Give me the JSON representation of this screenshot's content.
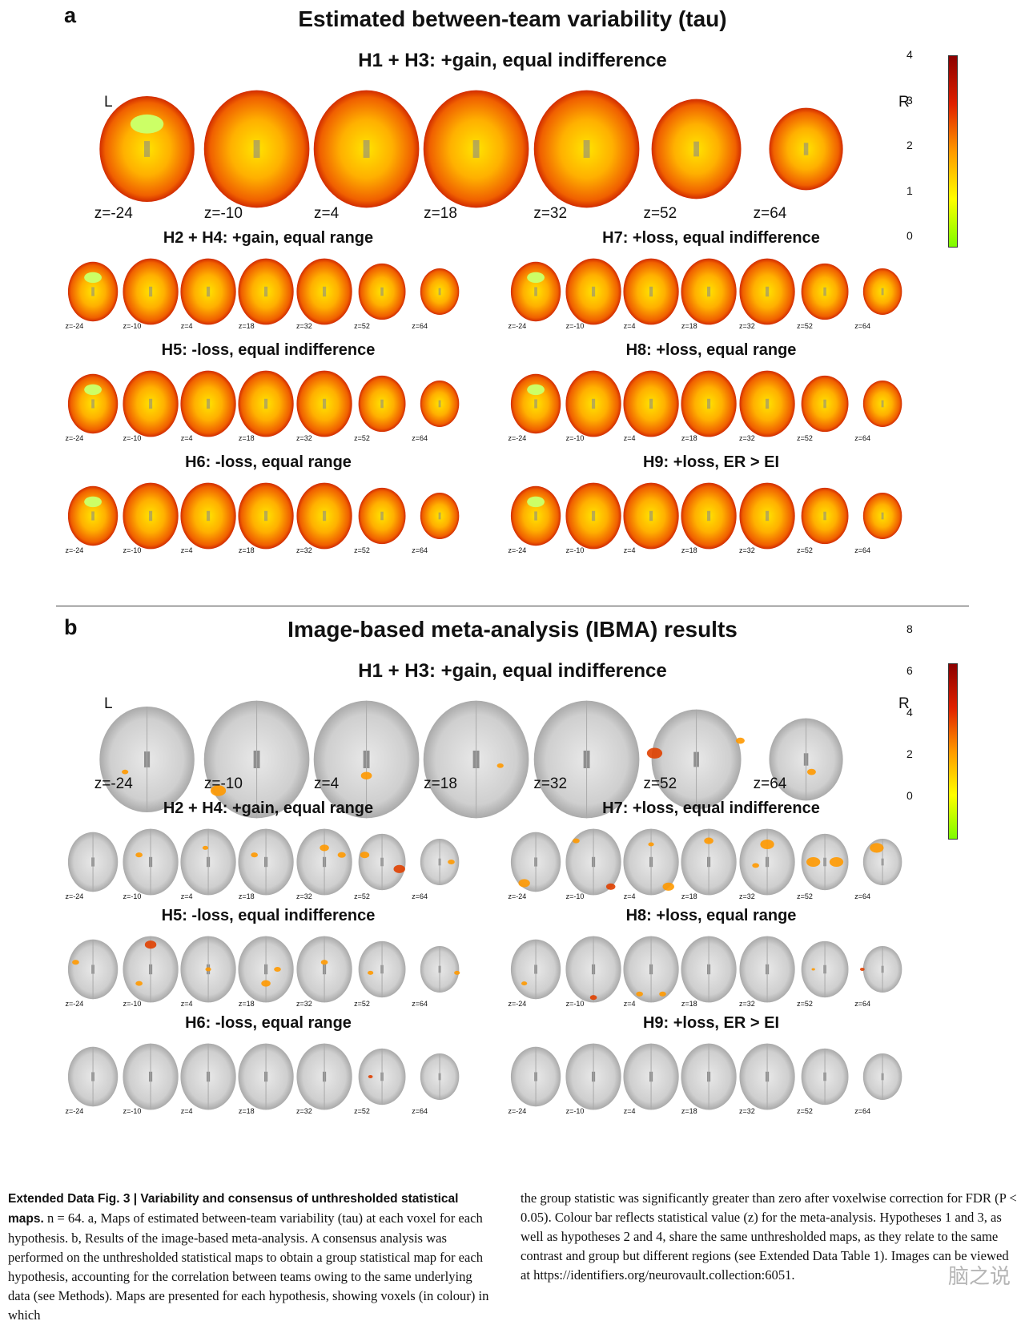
{
  "panel_a": {
    "letter": "a",
    "title": "Estimated between-team variability (tau)",
    "main_title": "H1 + H3: +gain, equal indifference",
    "left_label": "L",
    "right_label": "R",
    "colorbar_ticks": [
      "4",
      "3",
      "2",
      "1",
      "0"
    ],
    "z_labels": [
      "z=-24",
      "z=-10",
      "z=4",
      "z=18",
      "z=32",
      "z=52",
      "z=64"
    ],
    "subpanels": [
      {
        "title": "H2 + H4: +gain, equal range"
      },
      {
        "title": "H7: +loss, equal indifference"
      },
      {
        "title": "H5: -loss, equal indifference"
      },
      {
        "title": "H8: +loss, equal range"
      },
      {
        "title": "H6: -loss, equal range"
      },
      {
        "title": "H9: +loss, ER > EI"
      }
    ]
  },
  "panel_b": {
    "letter": "b",
    "title": "Image-based meta-analysis (IBMA) results",
    "main_title": "H1 + H3: +gain, equal indifference",
    "left_label": "L",
    "right_label": "R",
    "colorbar_ticks": [
      "8",
      "6",
      "4",
      "2",
      "0"
    ],
    "z_labels": [
      "z=-24",
      "z=-10",
      "z=4",
      "z=18",
      "z=32",
      "z=52",
      "z=64"
    ],
    "subpanels": [
      {
        "title": "H2 + H4: +gain, equal range"
      },
      {
        "title": "H7: +loss, equal indifference"
      },
      {
        "title": "H5: -loss, equal indifference"
      },
      {
        "title": "H8: +loss, equal range"
      },
      {
        "title": "H6: -loss, equal range"
      },
      {
        "title": "H9: +loss, ER > EI"
      }
    ]
  },
  "caption": {
    "fig_label": "Extended Data Fig. 3 | Variability and consensus of unthresholded statistical maps.",
    "left_text": "n = 64. a, Maps of estimated between-team variability (tau) at each voxel for each hypothesis. b, Results of the image-based meta-analysis. A consensus analysis was performed on the unthresholded statistical maps to obtain a group statistical map for each hypothesis, accounting for the correlation between teams owing to the same underlying data (see Methods). Maps are presented for each hypothesis, showing voxels (in colour) in which",
    "right_text": "the group statistic was significantly greater than zero after voxelwise correction for FDR (P < 0.05). Colour bar reflects statistical value (z) for the meta-analysis. Hypotheses 1 and 3, as well as hypotheses 2 and 4, share the same unthresholded maps, as they relate to the same contrast and group but different regions (see Extended Data Table 1). Images can be viewed at https://identifiers.org/neurovault.collection:6051.",
    "watermark": "脑之说"
  }
}
